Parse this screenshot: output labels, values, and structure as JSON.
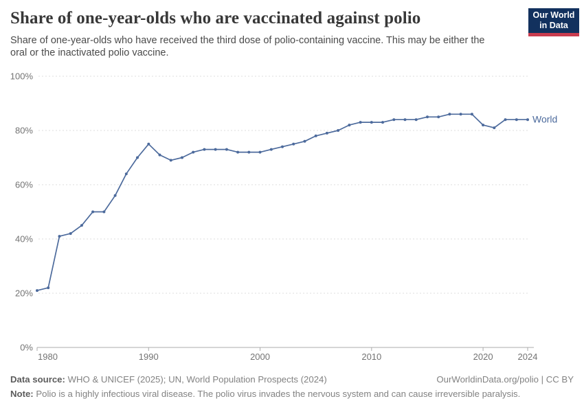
{
  "header": {
    "title": "Share of one-year-olds who are vaccinated against polio",
    "subtitle": "Share of one-year-olds who have received the third dose of polio-containing vaccine. This may be either the oral or the inactivated polio vaccine.",
    "logo": {
      "line1": "Our World",
      "line2": "in Data",
      "bg_color": "#12315e",
      "accent_color": "#c93c4f"
    }
  },
  "chart_data": {
    "type": "line",
    "title": "Share of one-year-olds who are vaccinated against polio",
    "xlabel": "",
    "ylabel": "",
    "xlim": [
      1980,
      2024
    ],
    "ylim": [
      0,
      100
    ],
    "grid": "horizontal-dashed",
    "legend_position": "line-end",
    "x_ticks": [
      1980,
      1990,
      2000,
      2010,
      2020,
      2024
    ],
    "x_tick_labels": [
      "1980",
      "1990",
      "2000",
      "2010",
      "2020",
      "2024"
    ],
    "y_ticks": [
      0,
      20,
      40,
      60,
      80,
      100
    ],
    "y_tick_labels": [
      "0%",
      "20%",
      "40%",
      "60%",
      "80%",
      "100%"
    ],
    "series": [
      {
        "name": "World",
        "color": "#4c6a9c",
        "x": [
          1980,
          1981,
          1982,
          1983,
          1984,
          1985,
          1986,
          1987,
          1988,
          1989,
          1990,
          1991,
          1992,
          1993,
          1994,
          1995,
          1996,
          1997,
          1998,
          1999,
          2000,
          2001,
          2002,
          2003,
          2004,
          2005,
          2006,
          2007,
          2008,
          2009,
          2010,
          2011,
          2012,
          2013,
          2014,
          2015,
          2016,
          2017,
          2018,
          2019,
          2020,
          2021,
          2022,
          2023,
          2024
        ],
        "values": [
          21,
          22,
          41,
          42,
          45,
          50,
          50,
          56,
          64,
          70,
          75,
          71,
          69,
          70,
          72,
          73,
          73,
          73,
          72,
          72,
          72,
          73,
          74,
          75,
          76,
          78,
          79,
          80,
          82,
          83,
          83,
          83,
          84,
          84,
          84,
          85,
          85,
          86,
          86,
          86,
          82,
          81,
          84,
          84,
          84
        ]
      }
    ]
  },
  "footer": {
    "data_source_label": "Data source:",
    "data_source_text": "WHO & UNICEF (2025); UN, World Population Prospects (2024)",
    "attribution": "OurWorldinData.org/polio | CC BY",
    "note_label": "Note:",
    "note_text": "Polio is a highly infectious viral disease. The polio virus invades the nervous system and can cause irreversible paralysis."
  }
}
